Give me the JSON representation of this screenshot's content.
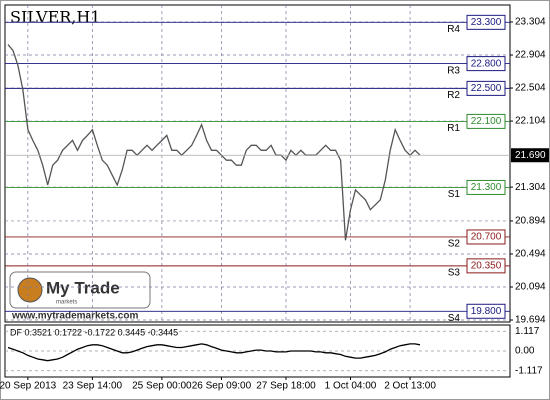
{
  "chart_data": {
    "type": "line",
    "title": "SILVER,H1",
    "color": "#555555",
    "grid": true,
    "categories": [
      null,
      null,
      null,
      null,
      "20 Sep 2013",
      null,
      null,
      null,
      null,
      null,
      null,
      null,
      null,
      null,
      null,
      null,
      null,
      "23 Sep 14:00",
      null,
      null,
      null,
      null,
      null,
      null,
      null,
      null,
      null,
      null,
      null,
      null,
      null,
      "25 Sep 00:00",
      null,
      null,
      null,
      null,
      null,
      null,
      null,
      null,
      null,
      null,
      null,
      "26 Sep 09:00",
      null,
      null,
      null,
      null,
      null,
      null,
      null,
      null,
      null,
      null,
      null,
      null,
      "27 Sep 18:00",
      null,
      null,
      null,
      null,
      null,
      null,
      null,
      null,
      null,
      null,
      null,
      null,
      "1 Oct 04:00",
      null,
      null,
      null,
      null,
      null,
      null,
      null,
      null,
      null,
      null,
      null,
      "2 Oct 13:00",
      null,
      null
    ],
    "values": [
      23.03,
      22.96,
      22.78,
      22.48,
      22.0,
      21.87,
      21.75,
      21.57,
      21.33,
      21.57,
      21.63,
      21.75,
      21.81,
      21.87,
      21.75,
      21.87,
      21.93,
      22.0,
      21.81,
      21.63,
      21.57,
      21.45,
      21.33,
      21.51,
      21.75,
      21.75,
      21.69,
      21.75,
      21.81,
      21.75,
      21.81,
      21.87,
      21.93,
      21.75,
      21.75,
      21.69,
      21.75,
      21.81,
      21.93,
      22.06,
      21.87,
      21.75,
      21.75,
      21.69,
      21.63,
      21.63,
      21.57,
      21.57,
      21.75,
      21.81,
      21.81,
      21.75,
      21.75,
      21.81,
      21.69,
      21.69,
      21.63,
      21.75,
      21.69,
      21.75,
      21.69,
      21.69,
      21.69,
      21.75,
      21.81,
      21.75,
      21.75,
      21.63,
      20.66,
      21.03,
      21.27,
      21.21,
      21.15,
      21.03,
      21.09,
      21.15,
      21.39,
      21.75,
      22.0,
      21.87,
      21.75,
      21.69,
      21.75,
      21.69
    ],
    "ylim": [
      19.67,
      23.51
    ],
    "yticks": [
      23.304,
      22.904,
      22.504,
      22.104,
      21.304,
      20.894,
      20.494,
      20.094,
      19.694
    ],
    "last_price": {
      "value": 21.69,
      "label": "21.690"
    },
    "levels": [
      {
        "name": "R4",
        "value": 23.3,
        "label": "23.300",
        "color": "#1a1a80"
      },
      {
        "name": "R3",
        "value": 22.8,
        "label": "22.800",
        "color": "#1a1a80"
      },
      {
        "name": "R2",
        "value": 22.5,
        "label": "22.500",
        "color": "#1a1a80"
      },
      {
        "name": "R1",
        "value": 22.1,
        "label": "22.100",
        "color": "#2e8b2e"
      },
      {
        "name": "S1",
        "value": 21.3,
        "label": "21.300",
        "color": "#2e8b2e"
      },
      {
        "name": "S2",
        "value": 20.7,
        "label": "20.700",
        "color": "#8b1a1a"
      },
      {
        "name": "S3",
        "value": 20.35,
        "label": "20.350",
        "color": "#8b1a1a"
      },
      {
        "name": "S4",
        "value": 19.8,
        "label": "19.800",
        "color": "#1a1a80"
      }
    ],
    "indicator": {
      "title": "DF 0.3521 0.1722 -0.1722 0.3445 -0.3445",
      "color": "#000000",
      "ylim": [
        -1.47,
        1.47
      ],
      "yticks": [
        1.117,
        {
          "value": 0,
          "label": "0.00"
        },
        -1.117
      ],
      "values": [
        0.2,
        0.1,
        0.0,
        -0.1,
        -0.25,
        -0.35,
        -0.45,
        -0.5,
        -0.55,
        -0.5,
        -0.45,
        -0.35,
        -0.2,
        -0.05,
        0.1,
        0.2,
        0.3,
        0.35,
        0.35,
        0.3,
        0.2,
        0.1,
        0.0,
        -0.1,
        -0.1,
        -0.05,
        0.05,
        0.15,
        0.25,
        0.3,
        0.35,
        0.35,
        0.3,
        0.25,
        0.2,
        0.2,
        0.25,
        0.3,
        0.35,
        0.4,
        0.35,
        0.25,
        0.15,
        0.05,
        0.0,
        -0.05,
        -0.1,
        -0.1,
        -0.05,
        0.0,
        0.05,
        0.05,
        0.0,
        0.0,
        -0.05,
        -0.05,
        -0.05,
        0.0,
        0.0,
        0.0,
        0.0,
        0.0,
        -0.05,
        -0.05,
        -0.1,
        -0.1,
        -0.15,
        -0.2,
        -0.3,
        -0.35,
        -0.4,
        -0.4,
        -0.35,
        -0.3,
        -0.25,
        -0.15,
        -0.05,
        0.1,
        0.2,
        0.3,
        0.35,
        0.4,
        0.4,
        0.35
      ]
    }
  },
  "watermark": {
    "logo": "My Trade",
    "logo_sub": "markets",
    "url": "www.mytrademarkets.com"
  }
}
